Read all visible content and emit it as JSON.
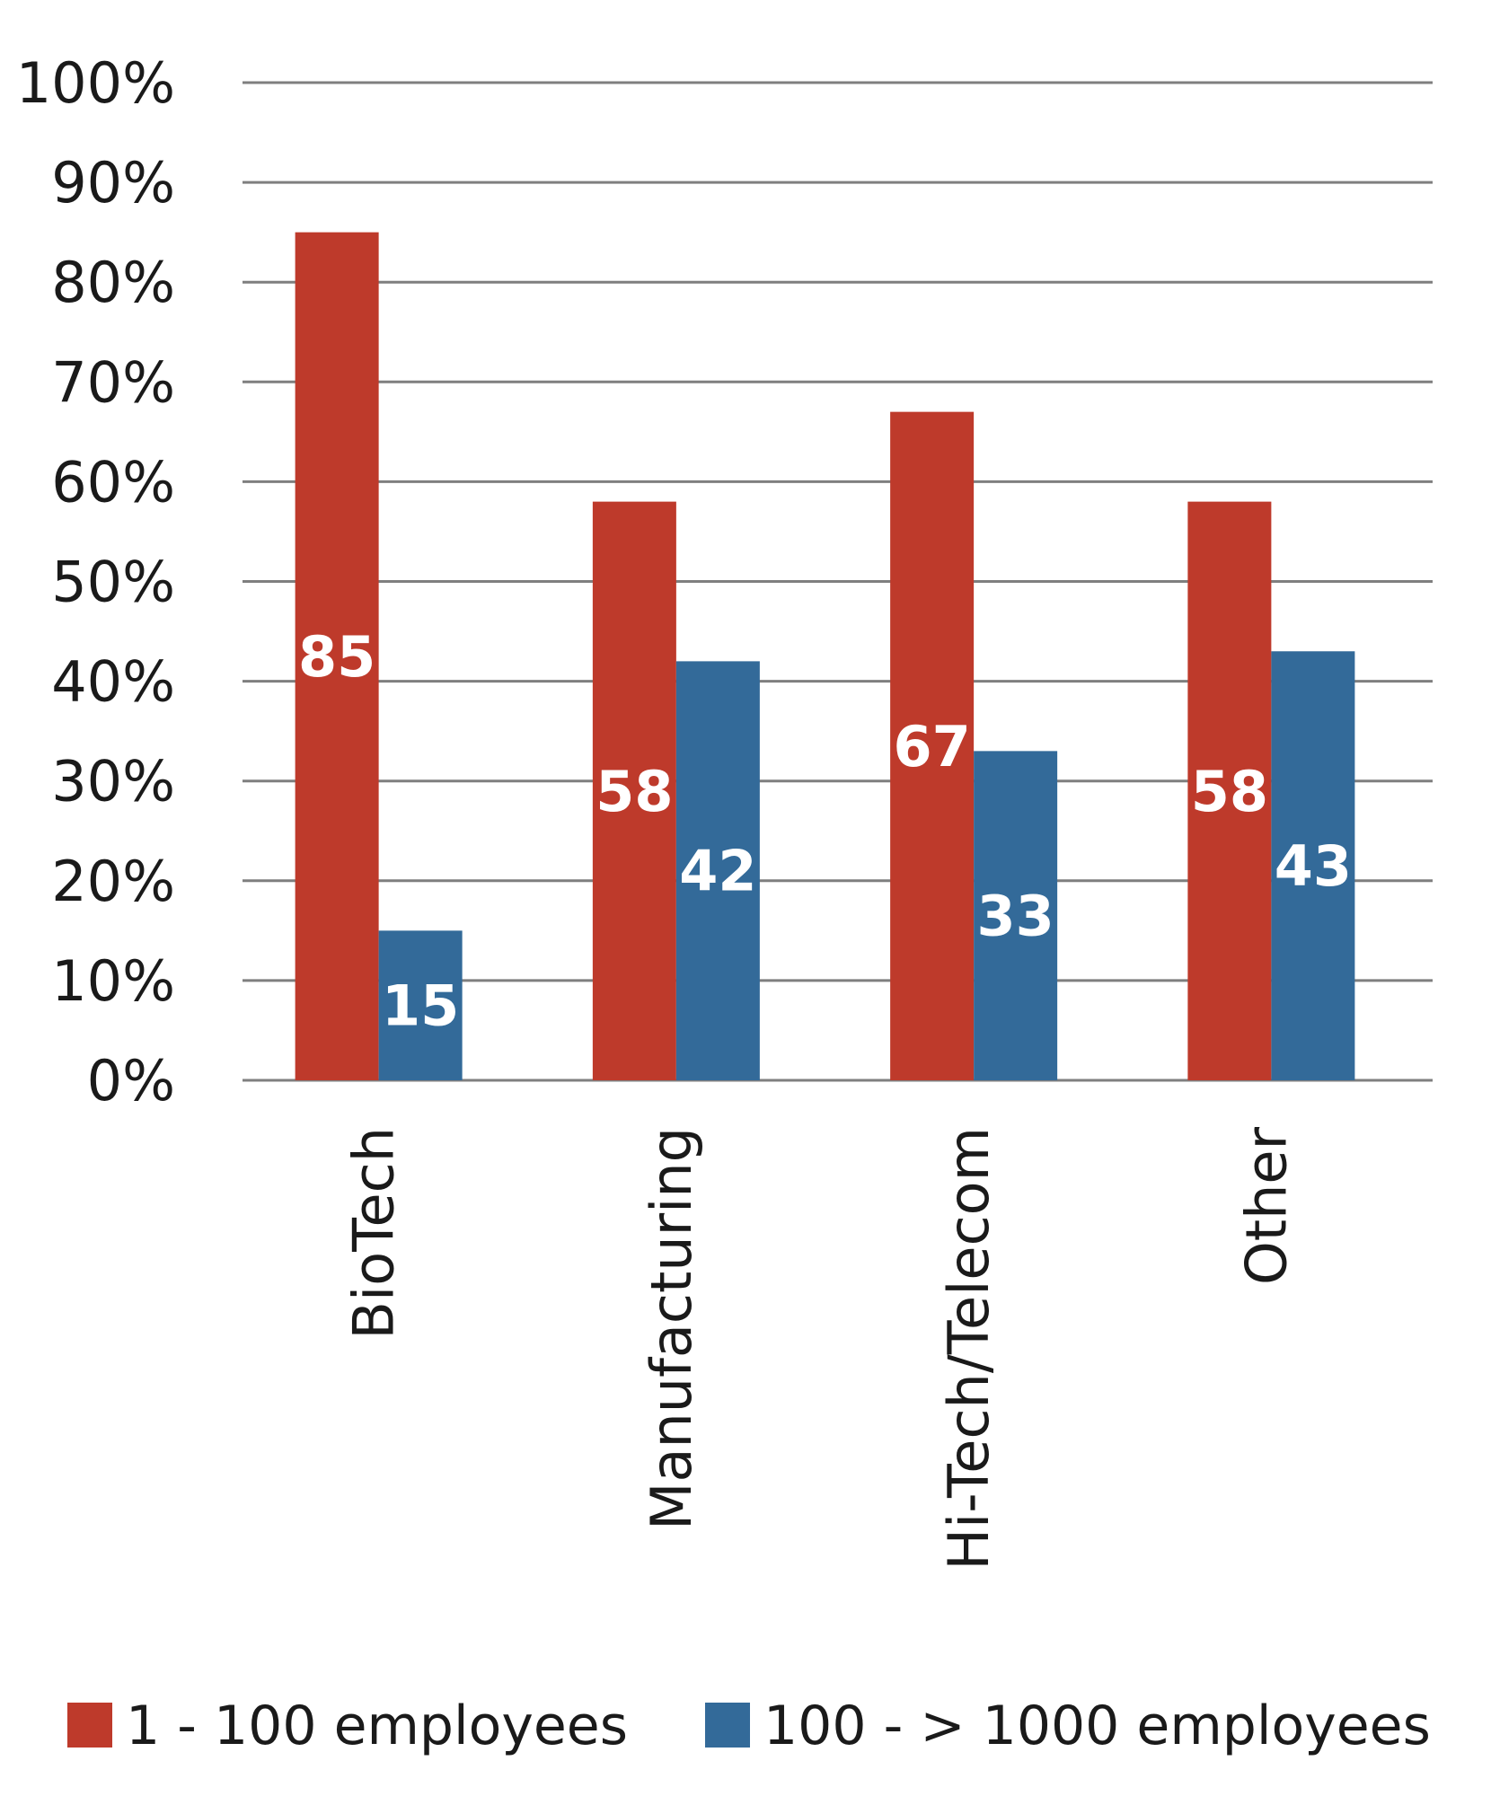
{
  "chart_data": {
    "type": "bar",
    "categories": [
      "BioTech",
      "Manufacturing",
      "Hi-Tech/Telecom",
      "Other"
    ],
    "series": [
      {
        "name": "1 - 100 employees",
        "values": [
          85,
          58,
          67,
          58
        ],
        "labels": [
          "85",
          "58",
          "67",
          "58"
        ],
        "color": "#be3a2b"
      },
      {
        "name": "100 - > 1000 employees",
        "values": [
          15,
          42,
          33,
          43
        ],
        "labels": [
          "15",
          "42",
          "33",
          "43"
        ],
        "color": "#336a99"
      }
    ],
    "yticks": [
      "0%",
      "10%",
      "20%",
      "30%",
      "40%",
      "50%",
      "60%",
      "70%",
      "80%",
      "90%",
      "100%"
    ],
    "ylim": [
      0,
      100
    ],
    "grid": true,
    "legend": "bottom",
    "title": "",
    "xlabel": "",
    "ylabel": ""
  }
}
